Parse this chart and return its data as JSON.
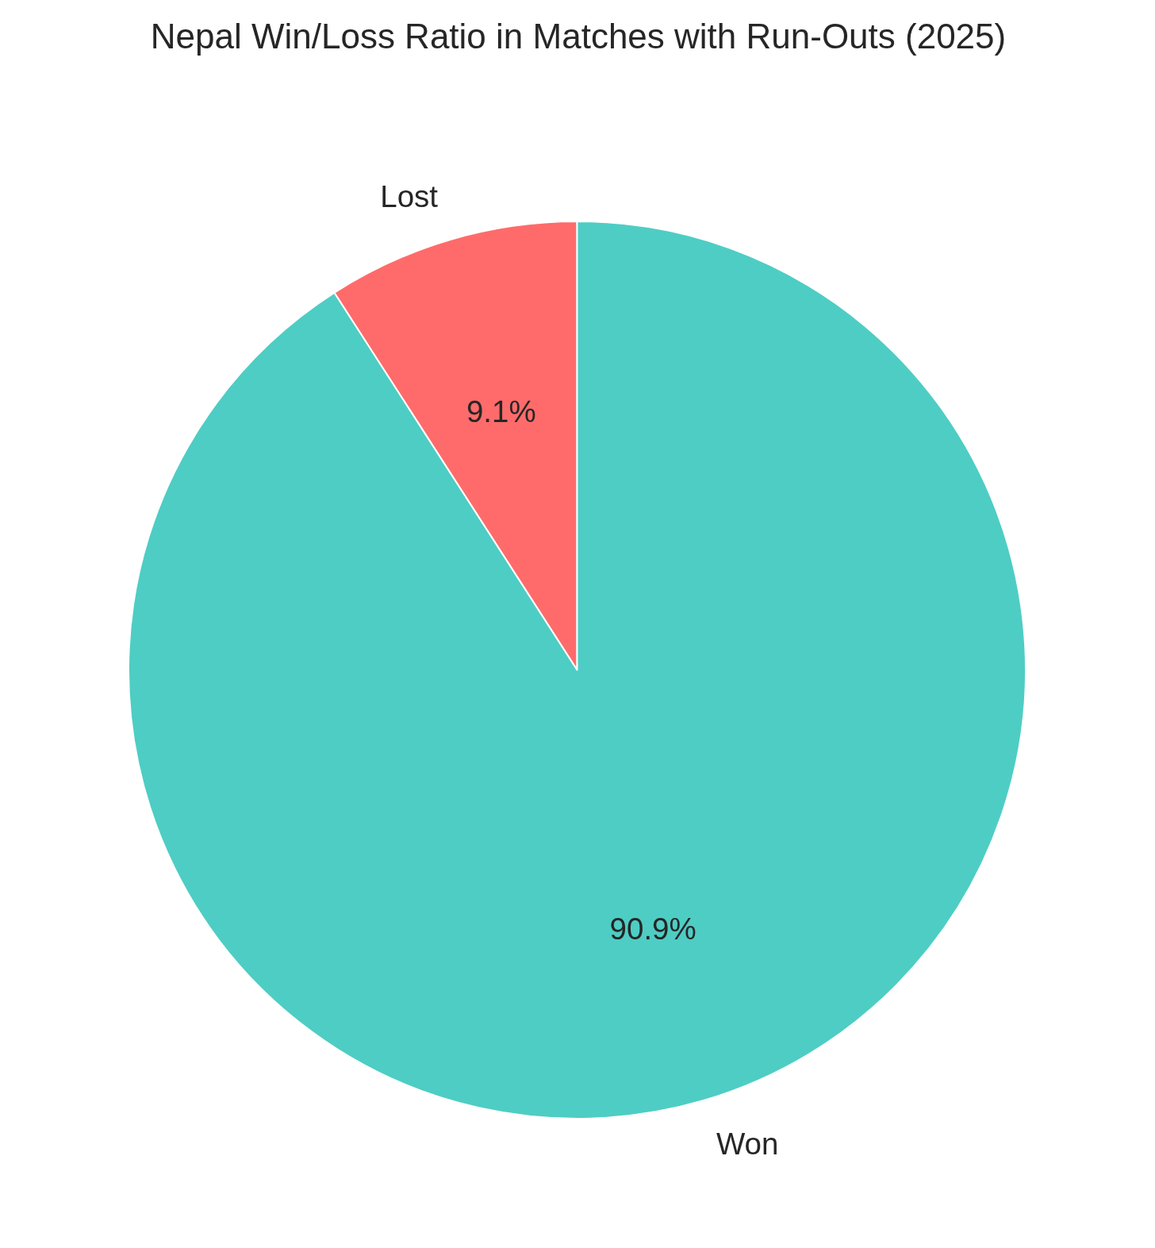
{
  "chart_data": {
    "type": "pie",
    "title": "Nepal Win/Loss Ratio in Matches with Run-Outs (2025)",
    "categories": [
      "Lost",
      "Won"
    ],
    "values": [
      9.1,
      90.9
    ],
    "colors": [
      "#ff6b6b",
      "#4ecdc4"
    ],
    "value_labels": [
      "9.1%",
      "90.9%"
    ]
  }
}
